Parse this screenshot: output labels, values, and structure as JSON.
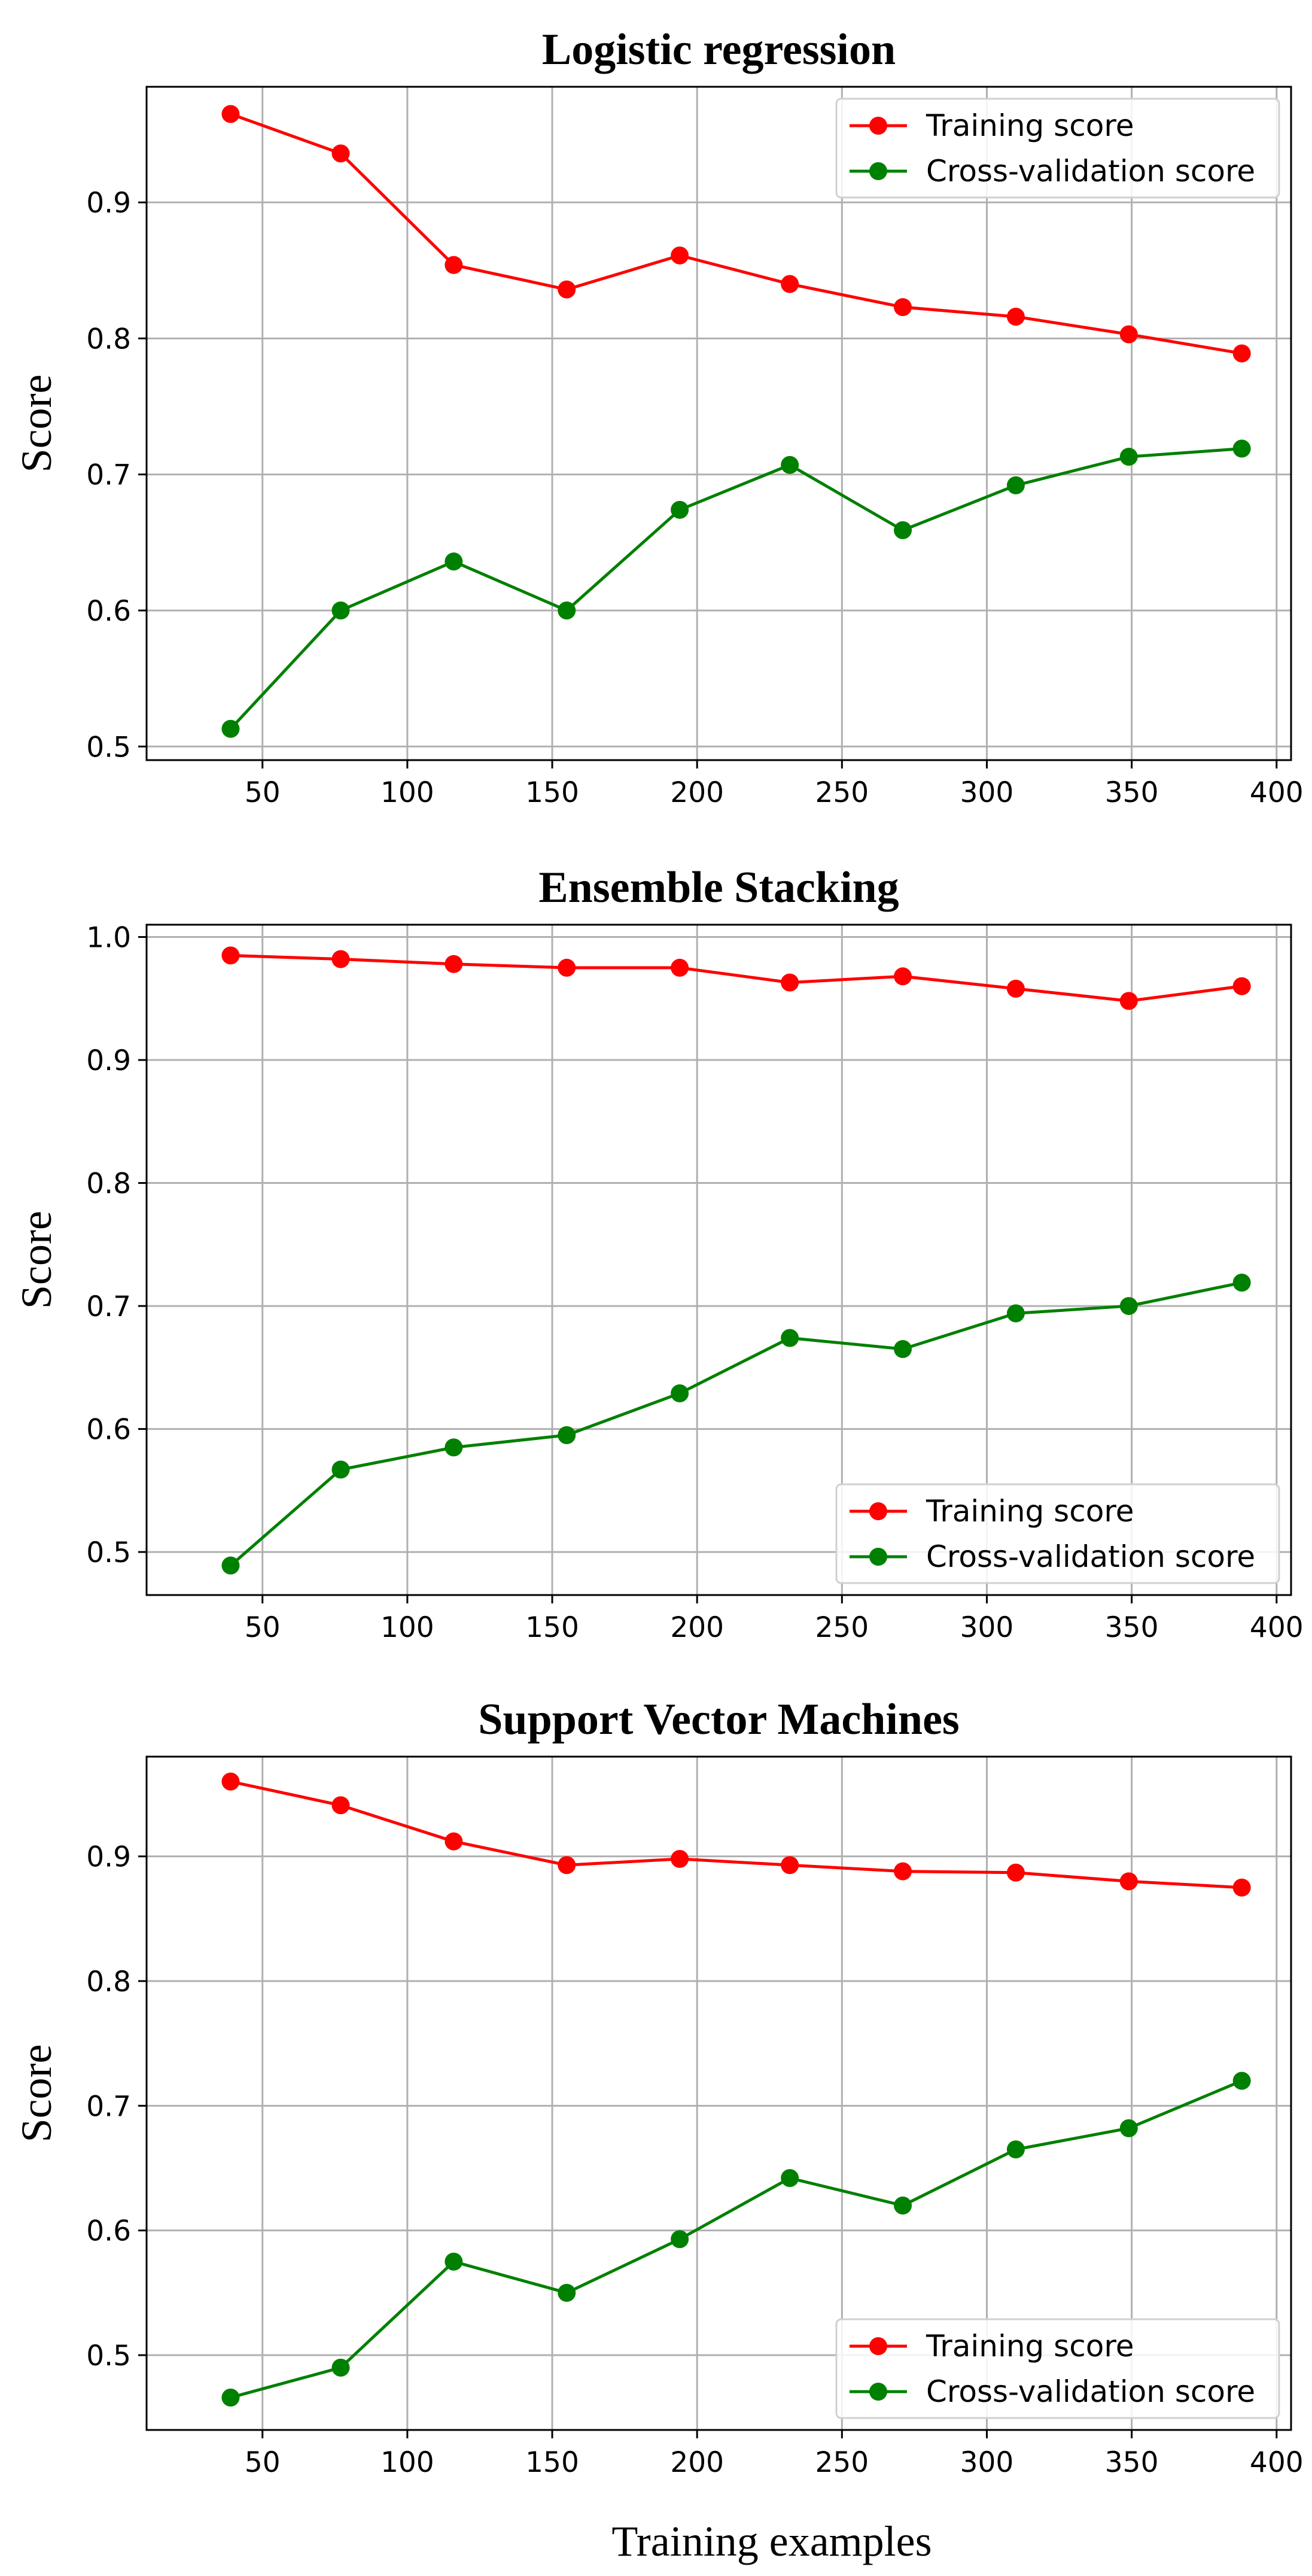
{
  "xlabel": "Training examples",
  "chart_data": [
    {
      "type": "line",
      "title": "Logistic regression",
      "xlabel": "",
      "ylabel": "Score",
      "x": [
        39,
        77,
        116,
        155,
        194,
        232,
        271,
        310,
        349,
        388
      ],
      "xlim": [
        10,
        405
      ],
      "ylim": [
        0.49,
        0.985
      ],
      "xticks": [
        50,
        100,
        150,
        200,
        250,
        300,
        350,
        400
      ],
      "yticks": [
        0.5,
        0.6,
        0.7,
        0.8,
        0.9
      ],
      "grid": true,
      "legend_position": "upper right",
      "series": [
        {
          "name": "Training score",
          "color": "#ff0000",
          "values": [
            0.965,
            0.936,
            0.854,
            0.836,
            0.861,
            0.84,
            0.823,
            0.816,
            0.803,
            0.789
          ]
        },
        {
          "name": "Cross-validation score",
          "color": "#008000",
          "values": [
            0.513,
            0.6,
            0.636,
            0.6,
            0.674,
            0.707,
            0.659,
            0.692,
            0.713,
            0.719
          ]
        }
      ]
    },
    {
      "type": "line",
      "title": "Ensemble Stacking",
      "xlabel": "",
      "ylabel": "Score",
      "x": [
        39,
        77,
        116,
        155,
        194,
        232,
        271,
        310,
        349,
        388
      ],
      "xlim": [
        10,
        405
      ],
      "ylim": [
        0.465,
        1.01
      ],
      "xticks": [
        50,
        100,
        150,
        200,
        250,
        300,
        350,
        400
      ],
      "yticks": [
        0.5,
        0.6,
        0.7,
        0.8,
        0.9,
        1.0
      ],
      "yticklabels": [
        "0.5",
        "0.6",
        "0.7",
        "0.8",
        "0.9",
        "1.0"
      ],
      "grid": true,
      "legend_position": "lower right",
      "series": [
        {
          "name": "Training score",
          "color": "#ff0000",
          "values": [
            0.985,
            0.982,
            0.978,
            0.975,
            0.975,
            0.963,
            0.968,
            0.958,
            0.948,
            0.96
          ]
        },
        {
          "name": "Cross-validation score",
          "color": "#008000",
          "values": [
            0.489,
            0.567,
            0.585,
            0.595,
            0.629,
            0.674,
            0.665,
            0.694,
            0.7,
            0.719
          ]
        }
      ]
    },
    {
      "type": "line",
      "title": "Support Vector Machines",
      "xlabel": "Training examples",
      "ylabel": "Score",
      "x": [
        39,
        77,
        116,
        155,
        194,
        232,
        271,
        310,
        349,
        388
      ],
      "xlim": [
        10,
        405
      ],
      "ylim": [
        0.44,
        0.98
      ],
      "xticks": [
        50,
        100,
        150,
        200,
        250,
        300,
        350,
        400
      ],
      "yticks": [
        0.5,
        0.6,
        0.7,
        0.8,
        0.9
      ],
      "grid": true,
      "legend_position": "lower right",
      "series": [
        {
          "name": "Training score",
          "color": "#ff0000",
          "values": [
            0.96,
            0.941,
            0.912,
            0.893,
            0.898,
            0.893,
            0.888,
            0.887,
            0.88,
            0.875
          ]
        },
        {
          "name": "Cross-validation score",
          "color": "#008000",
          "values": [
            0.466,
            0.49,
            0.575,
            0.55,
            0.593,
            0.642,
            0.62,
            0.665,
            0.682,
            0.72
          ]
        }
      ]
    }
  ]
}
